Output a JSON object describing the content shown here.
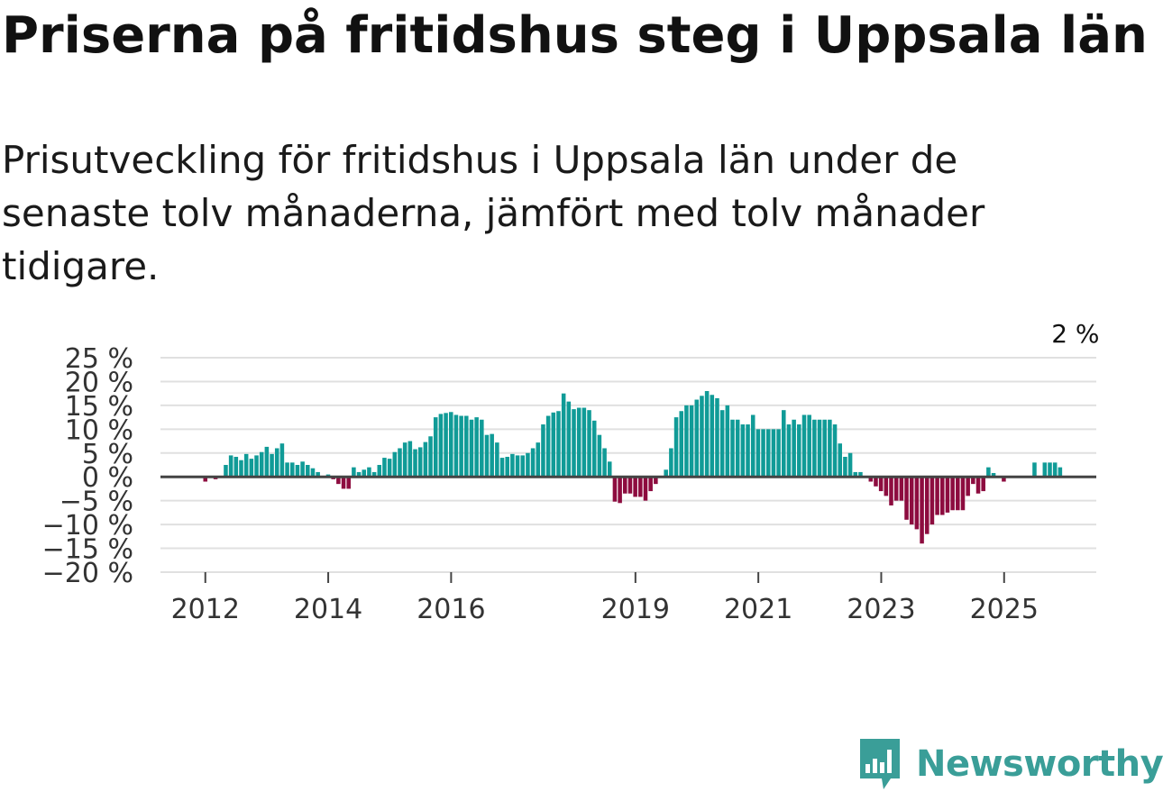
{
  "title": "Priserna på fritidshus steg i Uppsala län",
  "subtitle": "Prisutveckling för fritidshus i Uppsala län under de senaste tolv månaderna, jämfört med tolv månader tidigare.",
  "brand": {
    "name": "Newsworthy",
    "icon": "newsworthy-chart-icon"
  },
  "colors": {
    "positive": "#109b97",
    "negative": "#8d0c3f",
    "zero_line": "#444444",
    "grid": "#e0e0e0",
    "text": "#333333",
    "brand": "#3a9e98"
  },
  "chart_data": {
    "type": "bar",
    "title": "Priserna på fritidshus steg i Uppsala län",
    "xlabel": "",
    "ylabel": "",
    "ylim": [
      -20,
      25
    ],
    "yticks": [
      25,
      20,
      15,
      10,
      5,
      0,
      -5,
      -10,
      -15,
      -20
    ],
    "ytick_labels": [
      "25 %",
      "20 %",
      "15 %",
      "10 %",
      "5 %",
      "0 %",
      "−5 %",
      "−10 %",
      "−15 %",
      "−20 %"
    ],
    "xticks": [
      {
        "label": "2012",
        "x": 2012.0
      },
      {
        "label": "2014",
        "x": 2014.0
      },
      {
        "label": "2016",
        "x": 2016.0
      },
      {
        "label": "2019",
        "x": 2019.0
      },
      {
        "label": "2021",
        "x": 2021.0
      },
      {
        "label": "2023",
        "x": 2023.0
      },
      {
        "label": "2025",
        "x": 2025.0
      }
    ],
    "xlim": [
      2011.27,
      2026.5
    ],
    "start": 2011.75,
    "step": 0.0833,
    "grid": true,
    "annotation": {
      "text": "2 %",
      "index": 173
    },
    "series": [
      {
        "name": "Prisutveckling",
        "values": [
          0,
          0,
          0,
          -1,
          0,
          -0.5,
          0,
          2.5,
          4.5,
          4.2,
          3.5,
          4.8,
          3.8,
          4.5,
          5.2,
          6.3,
          4.8,
          6,
          7,
          3,
          3,
          2.5,
          3.2,
          2.5,
          1.8,
          1,
          0,
          0.5,
          -0.5,
          -1.5,
          -2.5,
          -2.5,
          2,
          1,
          1.5,
          2,
          1,
          2.5,
          4,
          3.8,
          5.2,
          6,
          7.2,
          7.5,
          5.8,
          6.2,
          7.3,
          8.5,
          12.5,
          13.2,
          13.4,
          13.6,
          13,
          12.8,
          12.8,
          12,
          12.5,
          12,
          8.8,
          9,
          7.2,
          4,
          4.2,
          4.8,
          4.5,
          4.5,
          5,
          6,
          7.2,
          11,
          12.8,
          13.5,
          13.8,
          17.5,
          15.8,
          14.2,
          14.5,
          14.5,
          14,
          11.8,
          8.8,
          6,
          3.2,
          -5.2,
          -5.5,
          -3.5,
          -3.5,
          -4.2,
          -4.2,
          -5,
          -3,
          -1.5,
          0,
          1.5,
          6,
          12.5,
          13.8,
          15,
          15,
          16.2,
          17,
          18,
          17.2,
          16.5,
          14,
          15,
          12,
          12,
          11,
          11,
          13,
          10,
          10,
          10,
          10,
          10,
          14,
          11,
          12,
          11,
          13,
          13,
          12,
          12,
          12,
          12,
          11,
          7,
          4.2,
          5,
          1,
          1,
          0,
          -1,
          -2,
          -3,
          -4,
          -6,
          -5,
          -5,
          -9,
          -10,
          -11,
          -14,
          -12,
          -10,
          -8,
          -8,
          -7.5,
          -7,
          -7,
          -7,
          -4,
          -1.5,
          -3.5,
          -3,
          2,
          0.8,
          0,
          -1,
          0,
          0,
          0,
          0,
          0,
          3,
          0,
          3,
          3,
          3,
          2,
          0
        ]
      }
    ]
  }
}
